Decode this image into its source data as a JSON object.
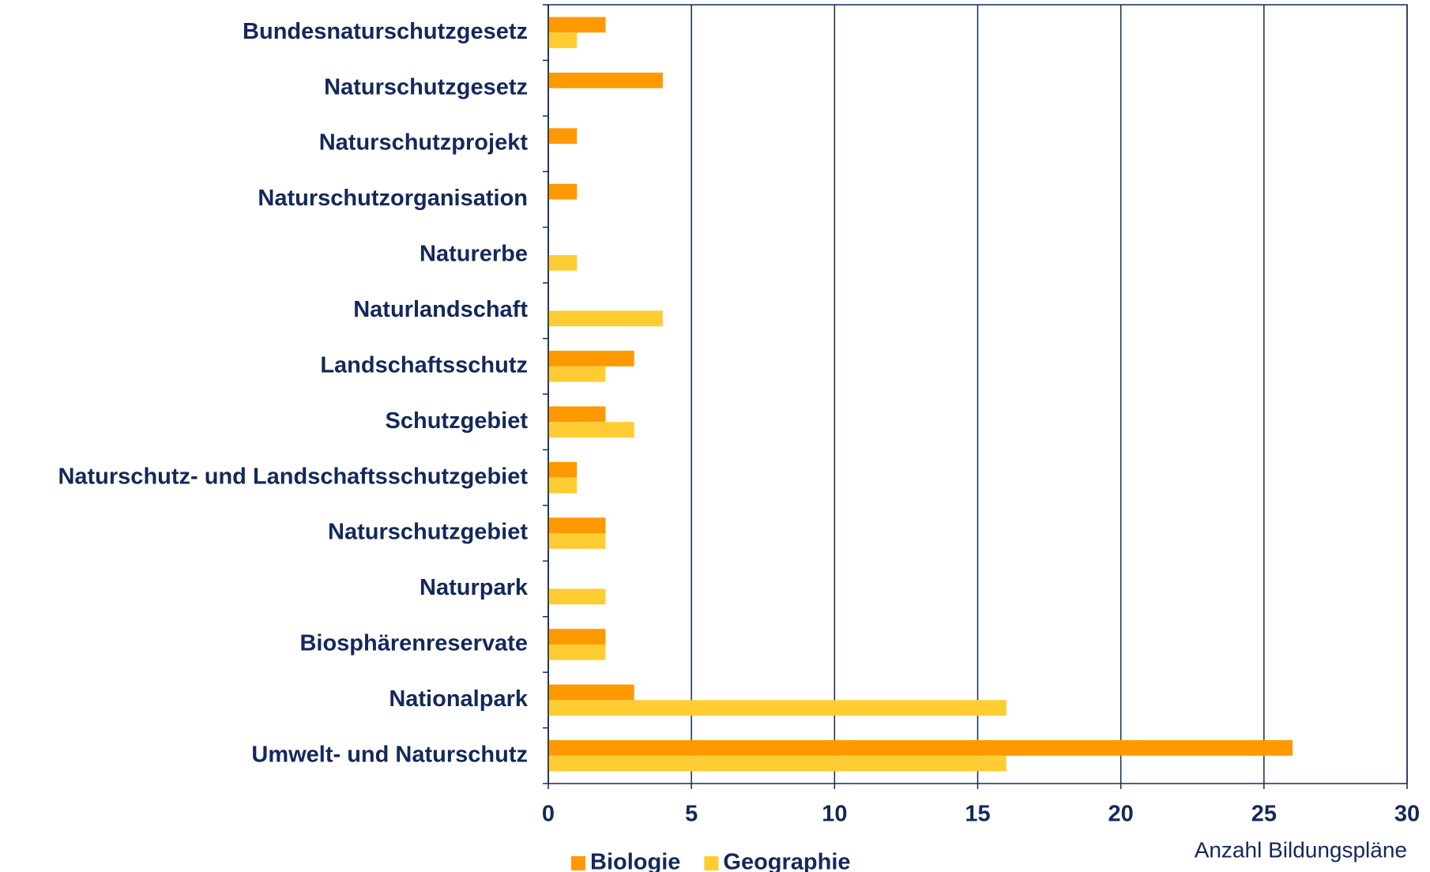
{
  "chart_data": {
    "type": "bar",
    "orientation": "horizontal",
    "x_label": "Anzahl Bildungspläne",
    "categories": [
      "Bundesnaturschutzgesetz",
      "Naturschutzgesetz",
      "Naturschutzprojekt",
      "Naturschutzorganisation",
      "Naturerbe",
      "Naturlandschaft",
      "Landschaftsschutz",
      "Schutzgebiet",
      "Naturschutz- und Landschaftsschutzgebiet",
      "Naturschutzgebiet",
      "Naturpark",
      "Biosphärenreservate",
      "Nationalpark",
      "Umwelt- und Naturschutz"
    ],
    "series": [
      {
        "name": "Biologie",
        "color": "#ff9900",
        "values": [
          2,
          4,
          1,
          1,
          0,
          0,
          3,
          2,
          1,
          2,
          0,
          2,
          3,
          26
        ]
      },
      {
        "name": "Geographie",
        "color": "#ffcc33",
        "values": [
          1,
          0,
          0,
          0,
          1,
          4,
          2,
          3,
          1,
          2,
          2,
          2,
          16,
          16
        ]
      }
    ],
    "xlim": [
      0,
      30
    ],
    "xticks": [
      0,
      5,
      10,
      15,
      20,
      25,
      30
    ],
    "grid": true,
    "legend": "bottom"
  }
}
